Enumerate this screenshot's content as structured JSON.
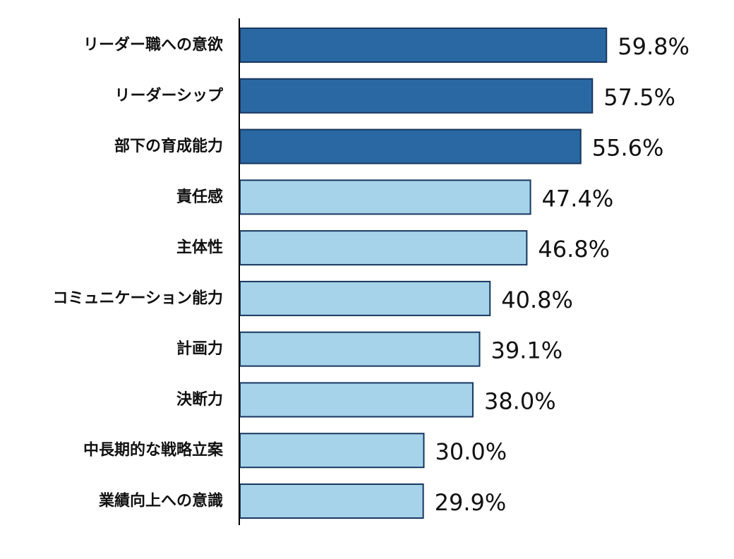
{
  "chart_data": {
    "type": "bar",
    "orientation": "horizontal",
    "categories": [
      "リーダー職への意欲",
      "リーダーシップ",
      "部下の育成能力",
      "責任感",
      "主体性",
      "コミュニケーション能力",
      "計画力",
      "決断力",
      "中長期的な戦略立案",
      "業績向上への意識"
    ],
    "values": [
      59.8,
      57.5,
      55.6,
      47.4,
      46.8,
      40.8,
      39.1,
      38.0,
      30.0,
      29.9
    ],
    "value_labels": [
      "59.8%",
      "57.5%",
      "55.6%",
      "47.4%",
      "46.8%",
      "40.8%",
      "39.1%",
      "38.0%",
      "30.0%",
      "29.9%"
    ],
    "highlight_count": 3,
    "colors": {
      "highlight": "#2a68a3",
      "normal": "#a6d3ea",
      "border": "#17375e"
    },
    "title": "",
    "xlabel": "",
    "ylabel": "",
    "xlim": [
      0,
      60
    ],
    "grid": false
  }
}
